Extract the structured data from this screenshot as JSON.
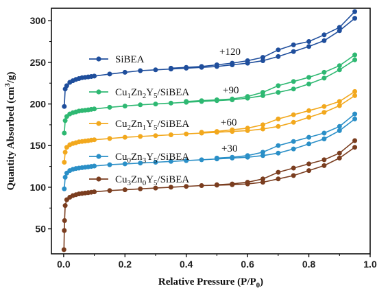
{
  "chart_data": {
    "type": "line",
    "xlabel": "Relative Pressure (P/P",
    "xlabel_sub": "0",
    "xlabel_end": ")",
    "ylabel_pre": "Quantity Absorbed (cm",
    "ylabel_sup": "3",
    "ylabel_post": "/g)",
    "xlim": [
      -0.04,
      1.0
    ],
    "ylim": [
      20,
      315
    ],
    "x_ticks": [
      0.0,
      0.2,
      0.4,
      0.6,
      0.8,
      1.0
    ],
    "x_tick_labels": [
      "0.0",
      "0.2",
      "0.4",
      "0.6",
      "0.8",
      "1.0"
    ],
    "y_ticks": [
      50,
      100,
      150,
      200,
      250,
      300
    ],
    "y_tick_labels": [
      "50",
      "100",
      "150",
      "200",
      "250",
      "300"
    ],
    "grid": false,
    "legend_position": "inside-left",
    "series": [
      {
        "name": "SiBEA",
        "name_parts": [
          [
            "SiBEA",
            ""
          ]
        ],
        "offset_label": "+120",
        "color": "#1f4e9c",
        "adsorption": [
          [
            0.002,
            197
          ],
          [
            0.005,
            218
          ],
          [
            0.01,
            222
          ],
          [
            0.02,
            226
          ],
          [
            0.03,
            228
          ],
          [
            0.04,
            229.5
          ],
          [
            0.05,
            230.5
          ],
          [
            0.06,
            231.5
          ],
          [
            0.07,
            232
          ],
          [
            0.08,
            232.5
          ],
          [
            0.09,
            233
          ],
          [
            0.1,
            233.5
          ],
          [
            0.15,
            236
          ],
          [
            0.2,
            238
          ],
          [
            0.25,
            240
          ],
          [
            0.3,
            241
          ],
          [
            0.35,
            242
          ],
          [
            0.4,
            243
          ],
          [
            0.45,
            244
          ],
          [
            0.5,
            245
          ],
          [
            0.55,
            247
          ],
          [
            0.6,
            249
          ],
          [
            0.65,
            252
          ],
          [
            0.7,
            257
          ],
          [
            0.75,
            263
          ],
          [
            0.8,
            269
          ],
          [
            0.85,
            276
          ],
          [
            0.9,
            288
          ],
          [
            0.95,
            303
          ]
        ],
        "desorption": [
          [
            0.95,
            311
          ],
          [
            0.9,
            292
          ],
          [
            0.85,
            283
          ],
          [
            0.8,
            275
          ],
          [
            0.75,
            271
          ],
          [
            0.7,
            265
          ],
          [
            0.65,
            256
          ],
          [
            0.6,
            252
          ],
          [
            0.55,
            249
          ],
          [
            0.5,
            247
          ],
          [
            0.45,
            245
          ],
          [
            0.4,
            244
          ],
          [
            0.35,
            243
          ]
        ]
      },
      {
        "name": "Cu1Zn2Y5/SiBEA",
        "name_parts": [
          [
            "Cu",
            ""
          ],
          [
            "1",
            "sub"
          ],
          [
            "Zn",
            ""
          ],
          [
            "2",
            "sub"
          ],
          [
            "Y",
            ""
          ],
          [
            "5",
            "sub"
          ],
          [
            "/SiBEA",
            ""
          ]
        ],
        "offset_label": "+90",
        "color": "#2eb872",
        "adsorption": [
          [
            0.002,
            165
          ],
          [
            0.005,
            180
          ],
          [
            0.01,
            185
          ],
          [
            0.02,
            188
          ],
          [
            0.03,
            189.5
          ],
          [
            0.04,
            190.5
          ],
          [
            0.05,
            191.5
          ],
          [
            0.06,
            192
          ],
          [
            0.07,
            192.5
          ],
          [
            0.08,
            193
          ],
          [
            0.09,
            193.5
          ],
          [
            0.1,
            194
          ],
          [
            0.15,
            196
          ],
          [
            0.2,
            197.5
          ],
          [
            0.25,
            199
          ],
          [
            0.3,
            200
          ],
          [
            0.35,
            201
          ],
          [
            0.4,
            202
          ],
          [
            0.45,
            203
          ],
          [
            0.5,
            204
          ],
          [
            0.55,
            205
          ],
          [
            0.6,
            207
          ],
          [
            0.65,
            210
          ],
          [
            0.7,
            214
          ],
          [
            0.75,
            218
          ],
          [
            0.8,
            224
          ],
          [
            0.85,
            231
          ],
          [
            0.9,
            241
          ],
          [
            0.95,
            253
          ]
        ],
        "desorption": [
          [
            0.95,
            259
          ],
          [
            0.9,
            246
          ],
          [
            0.85,
            238
          ],
          [
            0.8,
            232
          ],
          [
            0.75,
            227
          ],
          [
            0.7,
            222
          ],
          [
            0.65,
            214
          ],
          [
            0.6,
            209
          ],
          [
            0.55,
            206
          ],
          [
            0.5,
            205
          ],
          [
            0.45,
            204
          ],
          [
            0.4,
            203
          ]
        ]
      },
      {
        "name": "Cu2Zn1Y5/SiBEA",
        "name_parts": [
          [
            "Cu",
            ""
          ],
          [
            "2",
            "sub"
          ],
          [
            "Zn",
            ""
          ],
          [
            "1",
            "sub"
          ],
          [
            "Y",
            ""
          ],
          [
            "5",
            "sub"
          ],
          [
            "/SiBEA",
            ""
          ]
        ],
        "offset_label": "+60",
        "color": "#f2a81d",
        "adsorption": [
          [
            0.002,
            130
          ],
          [
            0.005,
            142
          ],
          [
            0.01,
            148
          ],
          [
            0.02,
            151
          ],
          [
            0.03,
            152.5
          ],
          [
            0.04,
            153.5
          ],
          [
            0.05,
            154.5
          ],
          [
            0.06,
            155
          ],
          [
            0.07,
            155.5
          ],
          [
            0.08,
            156
          ],
          [
            0.09,
            156.5
          ],
          [
            0.1,
            157
          ],
          [
            0.15,
            158.5
          ],
          [
            0.2,
            160
          ],
          [
            0.25,
            161
          ],
          [
            0.3,
            162
          ],
          [
            0.35,
            163
          ],
          [
            0.4,
            164
          ],
          [
            0.45,
            165
          ],
          [
            0.5,
            166
          ],
          [
            0.55,
            167
          ],
          [
            0.6,
            168
          ],
          [
            0.65,
            170
          ],
          [
            0.7,
            173
          ],
          [
            0.75,
            178
          ],
          [
            0.8,
            184
          ],
          [
            0.85,
            190
          ],
          [
            0.9,
            198
          ],
          [
            0.95,
            210
          ]
        ],
        "desorption": [
          [
            0.95,
            215
          ],
          [
            0.9,
            203
          ],
          [
            0.85,
            197
          ],
          [
            0.8,
            192
          ],
          [
            0.75,
            187
          ],
          [
            0.7,
            182
          ],
          [
            0.65,
            175
          ],
          [
            0.6,
            171
          ],
          [
            0.55,
            169
          ],
          [
            0.5,
            167
          ],
          [
            0.45,
            166
          ]
        ]
      },
      {
        "name": "Cu0Zn3Y5/SiBEA",
        "name_parts": [
          [
            "Cu",
            ""
          ],
          [
            "0",
            "sub"
          ],
          [
            "Zn",
            ""
          ],
          [
            "3",
            "sub"
          ],
          [
            "Y",
            ""
          ],
          [
            "5",
            "sub"
          ],
          [
            "/SiBEA",
            ""
          ]
        ],
        "offset_label": "+30",
        "color": "#2a8fc7",
        "adsorption": [
          [
            0.002,
            98
          ],
          [
            0.005,
            112
          ],
          [
            0.01,
            117
          ],
          [
            0.02,
            120
          ],
          [
            0.03,
            121.5
          ],
          [
            0.04,
            122.5
          ],
          [
            0.05,
            123
          ],
          [
            0.06,
            123.5
          ],
          [
            0.07,
            124
          ],
          [
            0.08,
            124.5
          ],
          [
            0.09,
            125
          ],
          [
            0.1,
            125.5
          ],
          [
            0.15,
            127
          ],
          [
            0.2,
            128
          ],
          [
            0.25,
            129
          ],
          [
            0.3,
            130
          ],
          [
            0.35,
            131
          ],
          [
            0.4,
            132
          ],
          [
            0.45,
            133
          ],
          [
            0.5,
            134
          ],
          [
            0.55,
            135
          ],
          [
            0.6,
            136
          ],
          [
            0.65,
            138
          ],
          [
            0.7,
            141
          ],
          [
            0.75,
            146
          ],
          [
            0.8,
            152
          ],
          [
            0.85,
            158
          ],
          [
            0.9,
            168
          ],
          [
            0.95,
            182
          ]
        ],
        "desorption": [
          [
            0.95,
            188
          ],
          [
            0.9,
            173
          ],
          [
            0.85,
            165
          ],
          [
            0.8,
            160
          ],
          [
            0.75,
            155
          ],
          [
            0.7,
            150
          ],
          [
            0.65,
            142
          ],
          [
            0.6,
            138
          ],
          [
            0.55,
            136
          ],
          [
            0.5,
            135
          ]
        ]
      },
      {
        "name": "Cu3Zn0Y5/SiBEA",
        "name_parts": [
          [
            "Cu",
            ""
          ],
          [
            "3",
            "sub"
          ],
          [
            "Zn",
            ""
          ],
          [
            "0",
            "sub"
          ],
          [
            "Y",
            ""
          ],
          [
            "5",
            "sub"
          ],
          [
            "/SiBEA",
            ""
          ]
        ],
        "offset_label": "",
        "color": "#7a3d1f",
        "adsorption": [
          [
            0.001,
            25
          ],
          [
            0.002,
            48
          ],
          [
            0.003,
            60
          ],
          [
            0.005,
            78
          ],
          [
            0.01,
            85
          ],
          [
            0.02,
            88
          ],
          [
            0.03,
            90
          ],
          [
            0.04,
            91
          ],
          [
            0.05,
            92
          ],
          [
            0.06,
            92.5
          ],
          [
            0.07,
            93
          ],
          [
            0.08,
            93.5
          ],
          [
            0.09,
            94
          ],
          [
            0.1,
            94.5
          ],
          [
            0.15,
            96
          ],
          [
            0.2,
            97
          ],
          [
            0.25,
            98
          ],
          [
            0.3,
            99
          ],
          [
            0.35,
            100
          ],
          [
            0.4,
            101
          ],
          [
            0.45,
            102
          ],
          [
            0.5,
            102.5
          ],
          [
            0.55,
            103
          ],
          [
            0.6,
            104
          ],
          [
            0.65,
            106
          ],
          [
            0.7,
            110
          ],
          [
            0.75,
            114
          ],
          [
            0.8,
            120
          ],
          [
            0.85,
            126
          ],
          [
            0.9,
            135
          ],
          [
            0.95,
            148
          ]
        ],
        "desorption": [
          [
            0.95,
            156
          ],
          [
            0.9,
            141
          ],
          [
            0.85,
            133
          ],
          [
            0.8,
            128
          ],
          [
            0.75,
            123
          ],
          [
            0.7,
            118
          ],
          [
            0.65,
            110
          ],
          [
            0.6,
            106
          ],
          [
            0.55,
            104
          ],
          [
            0.5,
            103
          ]
        ]
      }
    ]
  }
}
